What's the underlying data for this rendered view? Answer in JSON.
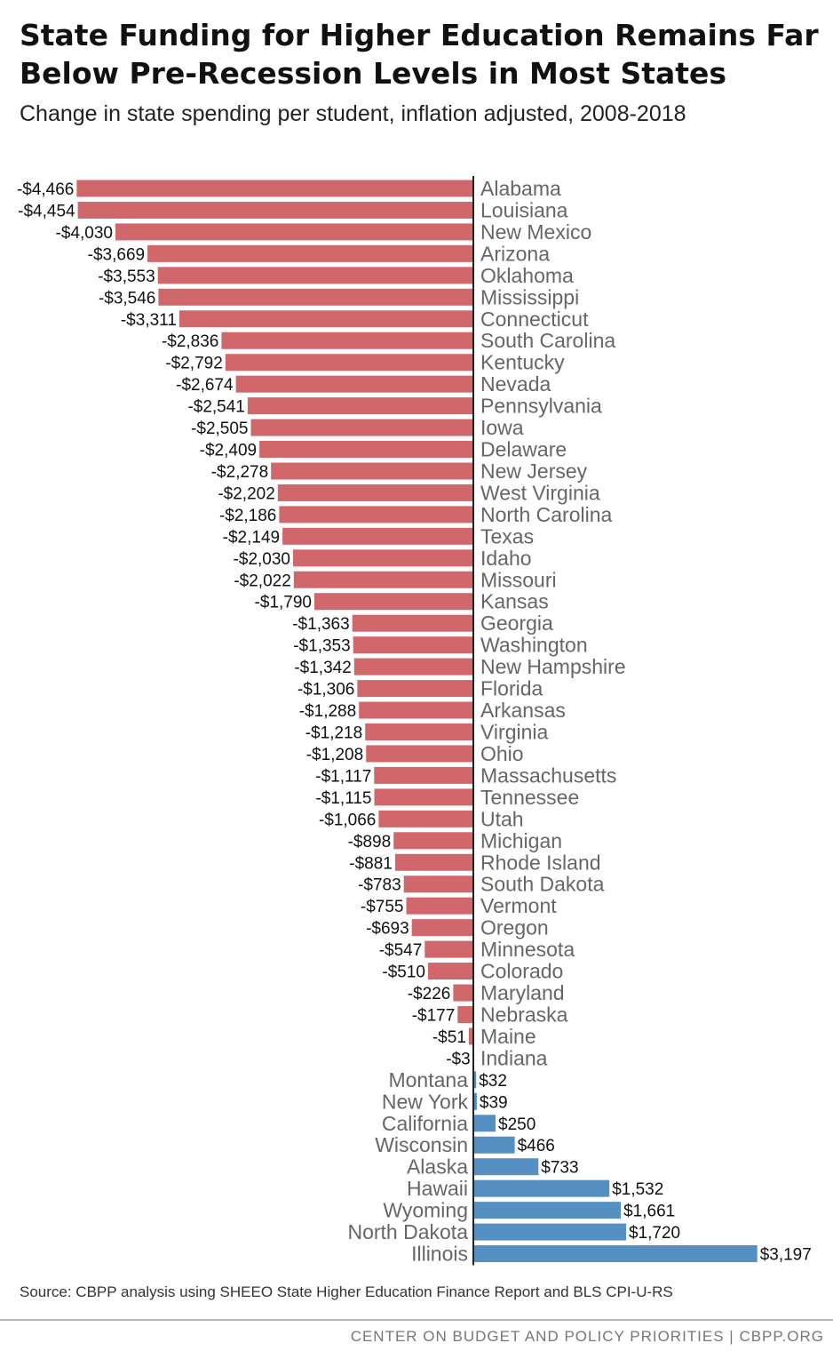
{
  "title": "State Funding for Higher Education Remains Far Below Pre-Recession Levels in Most States",
  "subtitle": "Change in state spending per student, inflation adjusted, 2008-2018",
  "source": "Source: CBPP analysis using SHEEO State Higher Education Finance Report and BLS CPI-U-RS",
  "footer": "CENTER ON BUDGET AND POLICY PRIORITIES | CBPP.ORG",
  "colors": {
    "negative": "#d0686b",
    "positive": "#5690c3",
    "axis": "#222222"
  },
  "chart_data": {
    "type": "bar",
    "orientation": "horizontal",
    "title": "State Funding for Higher Education Remains Far Below Pre-Recession Levels in Most States",
    "subtitle": "Change in state spending per student, inflation adjusted, 2008-2018",
    "xlim": [
      -4466,
      3197
    ],
    "grid": false,
    "legend": "none",
    "categories": [
      "Alabama",
      "Louisiana",
      "New Mexico",
      "Arizona",
      "Oklahoma",
      "Mississippi",
      "Connecticut",
      "South Carolina",
      "Kentucky",
      "Nevada",
      "Pennsylvania",
      "Iowa",
      "Delaware",
      "New Jersey",
      "West Virginia",
      "North Carolina",
      "Texas",
      "Idaho",
      "Missouri",
      "Kansas",
      "Georgia",
      "Washington",
      "New Hampshire",
      "Florida",
      "Arkansas",
      "Virginia",
      "Ohio",
      "Massachusetts",
      "Tennessee",
      "Utah",
      "Michigan",
      "Rhode Island",
      "South Dakota",
      "Vermont",
      "Oregon",
      "Minnesota",
      "Colorado",
      "Maryland",
      "Nebraska",
      "Maine",
      "Indiana",
      "Montana",
      "New York",
      "California",
      "Wisconsin",
      "Alaska",
      "Hawaii",
      "Wyoming",
      "North Dakota",
      "Illinois"
    ],
    "values": [
      -4466,
      -4454,
      -4030,
      -3669,
      -3553,
      -3546,
      -3311,
      -2836,
      -2792,
      -2674,
      -2541,
      -2505,
      -2409,
      -2278,
      -2202,
      -2186,
      -2149,
      -2030,
      -2022,
      -1790,
      -1363,
      -1353,
      -1342,
      -1306,
      -1288,
      -1218,
      -1208,
      -1117,
      -1115,
      -1066,
      -898,
      -881,
      -783,
      -755,
      -693,
      -547,
      -510,
      -226,
      -177,
      -51,
      -3,
      32,
      39,
      250,
      466,
      733,
      1532,
      1661,
      1720,
      3197
    ],
    "labels": [
      "-$4,466",
      "-$4,454",
      "-$4,030",
      "-$3,669",
      "-$3,553",
      "-$3,546",
      "-$3,311",
      "-$2,836",
      "-$2,792",
      "-$2,674",
      "-$2,541",
      "-$2,505",
      "-$2,409",
      "-$2,278",
      "-$2,202",
      "-$2,186",
      "-$2,149",
      "-$2,030",
      "-$2,022",
      "-$1,790",
      "-$1,363",
      "-$1,353",
      "-$1,342",
      "-$1,306",
      "-$1,288",
      "-$1,218",
      "-$1,208",
      "-$1,117",
      "-$1,115",
      "-$1,066",
      "-$898",
      "-$881",
      "-$783",
      "-$755",
      "-$693",
      "-$547",
      "-$510",
      "-$226",
      "-$177",
      "-$51",
      "-$3",
      "$32",
      "$39",
      "$250",
      "$466",
      "$733",
      "$1,532",
      "$1,661",
      "$1,720",
      "$3,197"
    ]
  }
}
